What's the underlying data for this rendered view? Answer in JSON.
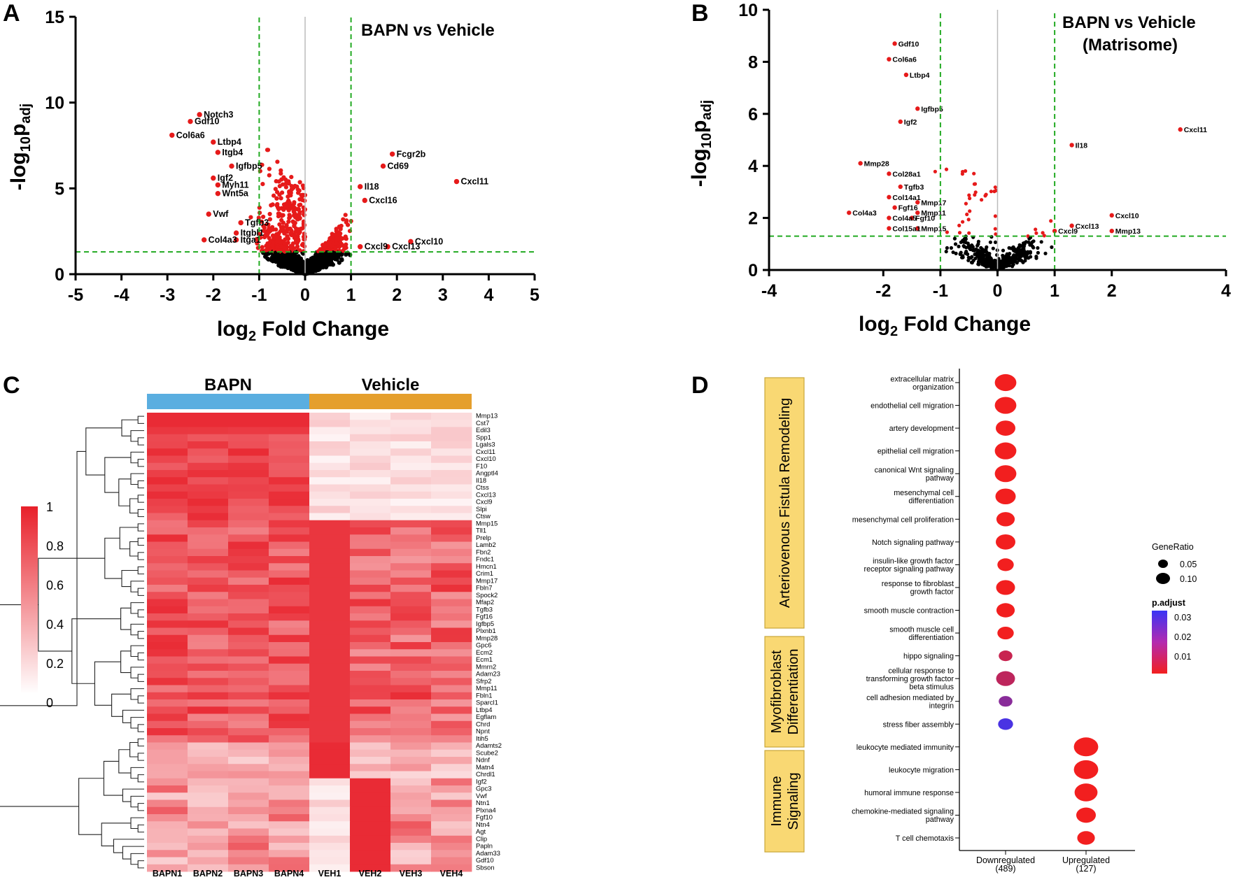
{
  "panels": {
    "a": "A",
    "b": "B",
    "c": "C",
    "d": "D"
  },
  "chart_data": [
    {
      "type": "scatter",
      "id": "volcano_all",
      "title": "BAPN vs Vehicle",
      "xlabel": "log",
      "xlabel_sub": "2",
      "xlabel_rest": " Fold Change",
      "ylabel": "-log",
      "ylabel_sub": "10",
      "ylabel_rest": "p",
      "ylabel_sub2": "adj",
      "xlim": [
        -5,
        5
      ],
      "ylim": [
        0,
        15
      ],
      "xticks": [
        "-5",
        "-4",
        "-3",
        "-2",
        "-1",
        "0",
        "1",
        "2",
        "3",
        "4",
        "5"
      ],
      "yticks": [
        "0",
        "5",
        "10",
        "15"
      ],
      "fc_threshold": 1,
      "p_threshold": 1.3,
      "labels": [
        {
          "gene": "Notch3",
          "x": -2.3,
          "y": 9.3
        },
        {
          "gene": "Gdf10",
          "x": -2.5,
          "y": 8.9
        },
        {
          "gene": "Col6a6",
          "x": -2.9,
          "y": 8.1
        },
        {
          "gene": "Ltbp4",
          "x": -2.0,
          "y": 7.7
        },
        {
          "gene": "Itgb4",
          "x": -1.9,
          "y": 7.1
        },
        {
          "gene": "Igfbp5",
          "x": -1.6,
          "y": 6.3
        },
        {
          "gene": "Igf2",
          "x": -2.0,
          "y": 5.6
        },
        {
          "gene": "Myh11",
          "x": -1.9,
          "y": 5.2
        },
        {
          "gene": "Wnt5a",
          "x": -1.9,
          "y": 4.7
        },
        {
          "gene": "Vwf",
          "x": -2.1,
          "y": 3.5
        },
        {
          "gene": "Tgfb3",
          "x": -1.4,
          "y": 3.0
        },
        {
          "gene": "Itgbl1",
          "x": -1.5,
          "y": 2.4
        },
        {
          "gene": "Itga1",
          "x": -1.5,
          "y": 2.0
        },
        {
          "gene": "Col4a3",
          "x": -2.2,
          "y": 2.0
        },
        {
          "gene": "Fcgr2b",
          "x": 1.9,
          "y": 7.0
        },
        {
          "gene": "Cd69",
          "x": 1.7,
          "y": 6.3
        },
        {
          "gene": "Il18",
          "x": 1.2,
          "y": 5.1
        },
        {
          "gene": "Cxcl16",
          "x": 1.3,
          "y": 4.3
        },
        {
          "gene": "Cxcl11",
          "x": 3.3,
          "y": 5.4
        },
        {
          "gene": "Cxcl10",
          "x": 2.3,
          "y": 1.9
        },
        {
          "gene": "Cxcl9",
          "x": 1.2,
          "y": 1.6
        },
        {
          "gene": "Cxcl13",
          "x": 1.8,
          "y": 1.6
        }
      ]
    },
    {
      "type": "scatter",
      "id": "volcano_matrisome",
      "title": "BAPN vs Vehicle",
      "title2": "(Matrisome)",
      "xlabel": "log",
      "xlabel_sub": "2",
      "xlabel_rest": " Fold Change",
      "ylabel": "-log",
      "ylabel_sub": "10",
      "ylabel_rest": "p",
      "ylabel_sub2": "adj",
      "xlim": [
        -4,
        4
      ],
      "ylim": [
        0,
        10
      ],
      "xticks": [
        "-4",
        "-2",
        "-1",
        "0",
        "1",
        "2",
        "4"
      ],
      "yticks": [
        "0",
        "2",
        "4",
        "6",
        "8",
        "10"
      ],
      "fc_threshold": 1,
      "p_threshold": 1.3,
      "labels": [
        {
          "gene": "Gdf10",
          "x": -1.8,
          "y": 8.7
        },
        {
          "gene": "Col6a6",
          "x": -1.9,
          "y": 8.1
        },
        {
          "gene": "Ltbp4",
          "x": -1.6,
          "y": 7.5
        },
        {
          "gene": "Igfbp5",
          "x": -1.4,
          "y": 6.2
        },
        {
          "gene": "Igf2",
          "x": -1.7,
          "y": 5.7
        },
        {
          "gene": "Mmp28",
          "x": -2.4,
          "y": 4.1
        },
        {
          "gene": "Col28a1",
          "x": -1.9,
          "y": 3.7
        },
        {
          "gene": "Tgfb3",
          "x": -1.7,
          "y": 3.2
        },
        {
          "gene": "Col14a1",
          "x": -1.9,
          "y": 2.8
        },
        {
          "gene": "Mmp17",
          "x": -1.4,
          "y": 2.6
        },
        {
          "gene": "Fgf16",
          "x": -1.8,
          "y": 2.4
        },
        {
          "gene": "Mmp11",
          "x": -1.4,
          "y": 2.2
        },
        {
          "gene": "Col4a3",
          "x": -2.6,
          "y": 2.2
        },
        {
          "gene": "Col4a5",
          "x": -1.9,
          "y": 2.0
        },
        {
          "gene": "Fgf10",
          "x": -1.5,
          "y": 2.0
        },
        {
          "gene": "Col15a1",
          "x": -1.9,
          "y": 1.6
        },
        {
          "gene": "Mmp15",
          "x": -1.4,
          "y": 1.6
        },
        {
          "gene": "Cxcl11",
          "x": 3.2,
          "y": 5.4
        },
        {
          "gene": "Il18",
          "x": 1.3,
          "y": 4.8
        },
        {
          "gene": "Cxcl10",
          "x": 2.0,
          "y": 2.1
        },
        {
          "gene": "Cxcl13",
          "x": 1.3,
          "y": 1.7
        },
        {
          "gene": "Cxcl9",
          "x": 1.0,
          "y": 1.5
        },
        {
          "gene": "Mmp13",
          "x": 2.0,
          "y": 1.5
        }
      ]
    },
    {
      "type": "heatmap",
      "id": "heatmap",
      "groups": [
        "BAPN",
        "Vehicle"
      ],
      "group_colors": [
        "#5aaee0",
        "#e59f2c"
      ],
      "columns": [
        "BAPN1",
        "BAPN2",
        "BAPN3",
        "BAPN4",
        "VEH1",
        "VEH2",
        "VEH3",
        "VEH4"
      ],
      "rows": [
        "Mmp13",
        "Cst7",
        "Edil3",
        "Spp1",
        "Lgals3",
        "Cxcl11",
        "Cxcl10",
        "F10",
        "Angptl4",
        "Il18",
        "Ctss",
        "Cxcl13",
        "Cxcl9",
        "Slpi",
        "Ctsw",
        "Mmp15",
        "Tll1",
        "Prelp",
        "Lamb2",
        "Fbn2",
        "Fndc1",
        "Hmcn1",
        "Crim1",
        "Mmp17",
        "Fbln7",
        "Spock2",
        "Mfap2",
        "Tgfb3",
        "Fgf16",
        "Igfbp5",
        "Plxnb1",
        "Mmp28",
        "Gpc6",
        "Ecm2",
        "Ecm1",
        "Mmrn2",
        "Adam23",
        "Sfrp2",
        "Mmp11",
        "Fbln1",
        "Sparcl1",
        "Ltbp4",
        "Egflam",
        "Chrd",
        "Npnt",
        "Itih5",
        "Adamts2",
        "Scube2",
        "Ndnf",
        "Matn4",
        "Chrdl1",
        "Igf2",
        "Gpc3",
        "Vwf",
        "Ntn1",
        "Plxna4",
        "Fgf10",
        "Ntn4",
        "Agt",
        "Clip",
        "Papln",
        "Adam33",
        "Gdf10",
        "Sbson"
      ],
      "color_scale": {
        "min": 0,
        "max": 1,
        "low": "#ffffff",
        "high": "#e8202a"
      },
      "colorbar_ticks": [
        "1",
        "0.8",
        "0.6",
        "0.4",
        "0.2",
        "0"
      ]
    },
    {
      "type": "scatter",
      "id": "go_dotplot",
      "x_categories": [
        "Downregulated",
        "Upregulated"
      ],
      "x_counts": [
        "(489)",
        "(127)"
      ],
      "categories": [
        {
          "name": "Arteriovenous Fistula Remodeling",
          "lines": [
            "Arteriovenous Fistula Remodeling"
          ]
        },
        {
          "name": "Myofibroblast Differentiation",
          "lines": [
            "Myofibroblast",
            "Differentiation"
          ]
        },
        {
          "name": "Immune Signaling",
          "lines": [
            "Immune",
            "Signaling"
          ]
        }
      ],
      "terms": [
        {
          "lines": [
            "extracellular matrix",
            "organization"
          ],
          "group": 0,
          "col": 0,
          "ratio": 0.11,
          "padj": 0.0
        },
        {
          "lines": [
            "endothelial cell migration"
          ],
          "group": 0,
          "col": 0,
          "ratio": 0.11,
          "padj": 0.0
        },
        {
          "lines": [
            "artery development"
          ],
          "group": 0,
          "col": 0,
          "ratio": 0.095,
          "padj": 0.0
        },
        {
          "lines": [
            "epithelial cell migration"
          ],
          "group": 0,
          "col": 0,
          "ratio": 0.11,
          "padj": 0.0
        },
        {
          "lines": [
            "canonical Wnt signaling",
            "pathway"
          ],
          "group": 0,
          "col": 0,
          "ratio": 0.11,
          "padj": 0.0
        },
        {
          "lines": [
            "mesenchymal cell",
            "differentiation"
          ],
          "group": 0,
          "col": 0,
          "ratio": 0.1,
          "padj": 0.0
        },
        {
          "lines": [
            "mesenchymal cell proliferation"
          ],
          "group": 0,
          "col": 0,
          "ratio": 0.085,
          "padj": 0.0
        },
        {
          "lines": [
            "Notch signaling pathway"
          ],
          "group": 0,
          "col": 0,
          "ratio": 0.095,
          "padj": 0.0
        },
        {
          "lines": [
            "insulin-like growth factor",
            "receptor signaling pathway"
          ],
          "group": 0,
          "col": 0,
          "ratio": 0.07,
          "padj": 0.0
        },
        {
          "lines": [
            "response to fibroblast",
            "growth factor"
          ],
          "group": 0,
          "col": 0,
          "ratio": 0.09,
          "padj": 0.0
        },
        {
          "lines": [
            "smooth muscle contraction"
          ],
          "group": 0,
          "col": 0,
          "ratio": 0.085,
          "padj": 0.0
        },
        {
          "lines": [
            "smooth muscle cell",
            "differentiation"
          ],
          "group": 0,
          "col": 0,
          "ratio": 0.07,
          "padj": 0.0
        },
        {
          "lines": [
            "hippo signaling"
          ],
          "group": 1,
          "col": 0,
          "ratio": 0.05,
          "padj": 0.008
        },
        {
          "lines": [
            "cellular response to",
            "transforming growth factor",
            "beta stimulus"
          ],
          "group": 1,
          "col": 0,
          "ratio": 0.09,
          "padj": 0.01
        },
        {
          "lines": [
            "cell adhesion mediated by",
            "integrin"
          ],
          "group": 1,
          "col": 0,
          "ratio": 0.05,
          "padj": 0.02
        },
        {
          "lines": [
            "stress fiber assembly"
          ],
          "group": 1,
          "col": 0,
          "ratio": 0.06,
          "padj": 0.032
        },
        {
          "lines": [
            "leukocyte mediated immunity"
          ],
          "group": 2,
          "col": 1,
          "ratio": 0.13,
          "padj": 0.0
        },
        {
          "lines": [
            "leukocyte migration"
          ],
          "group": 2,
          "col": 1,
          "ratio": 0.13,
          "padj": 0.0
        },
        {
          "lines": [
            "humoral immune response"
          ],
          "group": 2,
          "col": 1,
          "ratio": 0.12,
          "padj": 0.0
        },
        {
          "lines": [
            "chemokine-mediated signaling",
            "pathway"
          ],
          "group": 2,
          "col": 1,
          "ratio": 0.095,
          "padj": 0.0
        },
        {
          "lines": [
            "T cell chemotaxis"
          ],
          "group": 2,
          "col": 1,
          "ratio": 0.08,
          "padj": 0.0
        }
      ],
      "legend_size_title": "GeneRatio",
      "legend_size_items": [
        "0.05",
        "0.10"
      ],
      "legend_color_title": "p.adjust",
      "legend_color_ticks": [
        "0.03",
        "0.02",
        "0.01"
      ],
      "padj_range": [
        0,
        0.035
      ],
      "color_low": "#f21f1f",
      "color_high": "#3a35f5"
    }
  ],
  "colors": {
    "sig": "#e61a1a",
    "ns": "#000000",
    "threshold": "#22aa22",
    "zero": "#bbbbbb",
    "category_box": "#f9d873"
  }
}
